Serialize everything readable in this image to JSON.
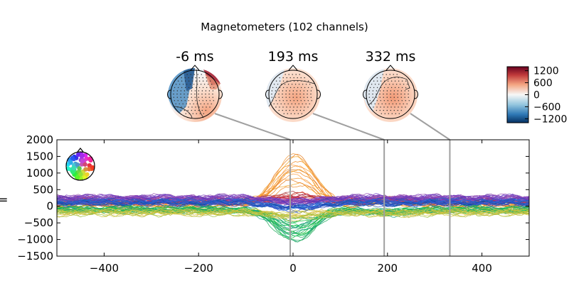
{
  "figure": {
    "title": "Magnetometers (102 channels)",
    "background": "#ffffff"
  },
  "chart_data": {
    "type": "line",
    "title": "Magnetometers (102 channels)",
    "xlabel": "",
    "ylabel": "",
    "xlim": [
      -500,
      500
    ],
    "ylim": [
      -1500,
      2000
    ],
    "x_ticks": [
      -400,
      -200,
      0,
      200,
      400
    ],
    "y_ticks": [
      -1500,
      -1000,
      -500,
      0,
      500,
      1000,
      1500,
      2000
    ],
    "n_channels": 102,
    "grid": false,
    "legend": "none",
    "marked_times_ms": [
      -6,
      193,
      332
    ],
    "topomaps": [
      {
        "label": "-6 ms",
        "time": -6
      },
      {
        "label": "193 ms",
        "time": 193
      },
      {
        "label": "332 ms",
        "time": 332
      }
    ],
    "colorbar": {
      "ticks": [
        1200,
        600,
        0,
        -600,
        -1200
      ],
      "tick_labels": [
        "1200",
        "600",
        "0",
        "−600",
        "−1200"
      ],
      "colormap": "RdBu_r",
      "range": [
        -1400,
        1400
      ]
    },
    "channel_groups": [
      {
        "color_family": "orange",
        "count": 14,
        "peak_at_0ms": 1550,
        "baseline": 30
      },
      {
        "color_family": "red",
        "count": 16,
        "peak_at_0ms": 300,
        "baseline": 150
      },
      {
        "color_family": "purple",
        "count": 20,
        "peak_at_0ms": 50,
        "baseline": 240
      },
      {
        "color_family": "blue",
        "count": 18,
        "peak_at_0ms": -150,
        "baseline": 120
      },
      {
        "color_family": "green",
        "count": 22,
        "peak_at_0ms": -1000,
        "baseline": -100
      },
      {
        "color_family": "yellow",
        "count": 12,
        "peak_at_0ms": -300,
        "baseline": -180
      }
    ]
  }
}
